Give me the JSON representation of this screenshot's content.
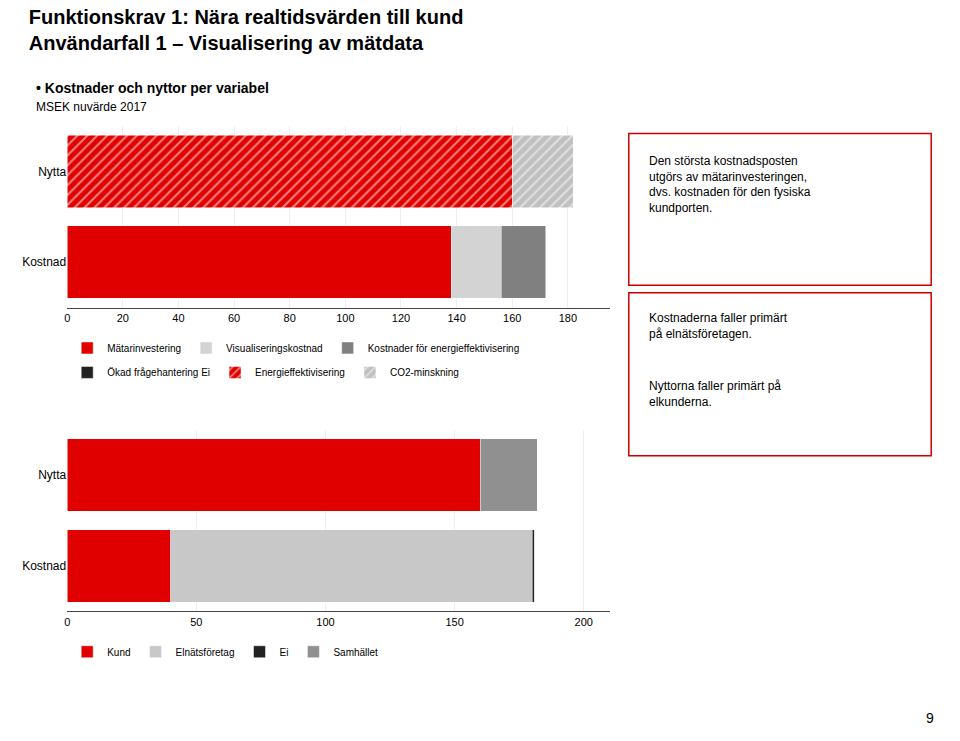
{
  "title": [
    "Funktionskrav 1: Nära realtidsvärden till kund",
    "Användarfall 1 – Visualisering av mätdata"
  ],
  "subtitle": [
    "• Kostnader och nyttor per variabel",
    "MSEK nuvärde 2017"
  ],
  "annotations": [
    "9"
  ],
  "chart_data": [
    {
      "type": "bar",
      "orientation": "horizontal",
      "stacked": true,
      "grid": true,
      "categories": [
        "Kostnad",
        "Nytta"
      ],
      "series": [
        {
          "name": "Mätarinvestering",
          "color": "#e00000",
          "values": [
            138,
            null
          ]
        },
        {
          "name": "Visualiseringskostnad",
          "color": "#d3d3d3",
          "values": [
            18,
            null
          ]
        },
        {
          "name": "Kostnader för energieffektivisering",
          "color": "#808080",
          "values": [
            16,
            null
          ]
        },
        {
          "name": "Ökad frågehantering Ei",
          "color": "#222222",
          "values": [
            null,
            null
          ]
        },
        {
          "name": "Energieffektivisering",
          "color": "#e00000",
          "marker": "hatch",
          "values": [
            null,
            160
          ]
        },
        {
          "name": "CO2-minskning",
          "color": "#c0c0c0",
          "marker": "hatch",
          "values": [
            null,
            22
          ]
        }
      ],
      "xlim": [
        0,
        195
      ],
      "xticks": [
        0,
        20,
        40,
        60,
        80,
        100,
        120,
        140,
        160,
        180
      ],
      "annotations": [
        "Den största kostnadsposten\nutgörs av mätarinvesteringen,\ndvs. kostnaden för den fysiska\nkundporten."
      ]
    },
    {
      "type": "bar",
      "orientation": "horizontal",
      "stacked": true,
      "grid": true,
      "categories": [
        "Kostnad",
        "Nytta"
      ],
      "series": [
        {
          "name": "Kund",
          "color": "#e00000",
          "values": [
            40,
            160
          ]
        },
        {
          "name": "Elnätsföretag",
          "color": "#c8c8c8",
          "values": [
            140,
            null
          ]
        },
        {
          "name": "Ei",
          "color": "#222222",
          "values": [
            1,
            null
          ]
        },
        {
          "name": "Samhället",
          "color": "#909090",
          "values": [
            0,
            22
          ]
        }
      ],
      "xlim": [
        0,
        210
      ],
      "xticks": [
        0,
        50,
        100,
        150,
        200
      ],
      "annotations": [
        "Kostnaderna faller primärt\npå elnätsföretagen.",
        "Nyttorna faller primärt på\nelkunderna."
      ]
    }
  ]
}
